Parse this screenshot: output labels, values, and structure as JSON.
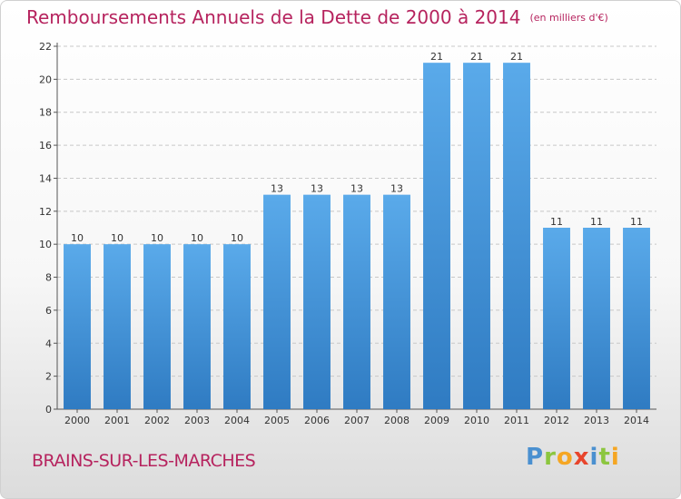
{
  "chart_data": {
    "type": "bar",
    "title": "Remboursements Annuels de la Dette de 2000 à 2014",
    "subtitle": "(en milliers d'€)",
    "categories": [
      "2000",
      "2001",
      "2002",
      "2003",
      "2004",
      "2005",
      "2006",
      "2007",
      "2008",
      "2009",
      "2010",
      "2011",
      "2012",
      "2013",
      "2014"
    ],
    "values": [
      10,
      10,
      10,
      10,
      10,
      13,
      13,
      13,
      13,
      21,
      21,
      21,
      11,
      11,
      11
    ],
    "ylim": [
      0,
      22
    ],
    "yticks": [
      0,
      2,
      4,
      6,
      8,
      10,
      12,
      14,
      16,
      18,
      20,
      22
    ],
    "grid": true,
    "bar_color": "#3f8fd6",
    "bar_color_light": "#5aaaea",
    "bar_color_dark": "#2f7bc2"
  },
  "footer": {
    "commune": "BRAINS-SUR-LES-MARCHES",
    "logo_letters": [
      {
        "char": "P",
        "color": "#4a90d0"
      },
      {
        "char": "r",
        "color": "#8cc63f"
      },
      {
        "char": "o",
        "color": "#f5a623"
      },
      {
        "char": "x",
        "color": "#e8452c"
      },
      {
        "char": "i",
        "color": "#4a90d0"
      },
      {
        "char": "t",
        "color": "#8cc63f"
      },
      {
        "char": "i",
        "color": "#f5a623"
      }
    ]
  }
}
